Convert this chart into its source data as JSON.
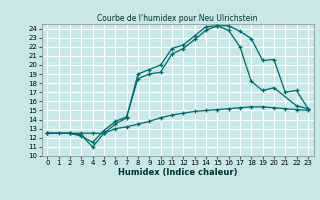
{
  "title": "Courbe de l'humidex pour Neu Ulrichstein",
  "xlabel": "Humidex (Indice chaleur)",
  "background_color": "#c8e8e8",
  "grid_color": "#ffffff",
  "line_color": "#006868",
  "xlim": [
    -0.5,
    23.5
  ],
  "ylim": [
    10,
    24.5
  ],
  "xticks": [
    0,
    1,
    2,
    3,
    4,
    5,
    6,
    7,
    8,
    9,
    10,
    11,
    12,
    13,
    14,
    15,
    16,
    17,
    18,
    19,
    20,
    21,
    22,
    23
  ],
  "yticks": [
    10,
    11,
    12,
    13,
    14,
    15,
    16,
    17,
    18,
    19,
    20,
    21,
    22,
    23,
    24
  ],
  "curve1_x": [
    0,
    1,
    2,
    3,
    4,
    5,
    6,
    7,
    8,
    9,
    10,
    11,
    12,
    13,
    14,
    15,
    16,
    17,
    18,
    19,
    20,
    21,
    22,
    23
  ],
  "curve1_y": [
    12.5,
    12.5,
    12.5,
    12.5,
    12.5,
    12.5,
    13.0,
    13.2,
    13.5,
    13.8,
    14.2,
    14.5,
    14.7,
    14.9,
    15.0,
    15.1,
    15.2,
    15.3,
    15.4,
    15.4,
    15.3,
    15.2,
    15.1,
    15.0
  ],
  "curve2_x": [
    0,
    2,
    3,
    4,
    5,
    6,
    7,
    8,
    9,
    10,
    11,
    12,
    13,
    14,
    15,
    16,
    17,
    18,
    19,
    20,
    21,
    22,
    23
  ],
  "curve2_y": [
    12.5,
    12.5,
    12.3,
    11.0,
    12.5,
    13.5,
    14.2,
    19.0,
    19.5,
    20.0,
    21.8,
    22.2,
    23.2,
    24.2,
    24.3,
    24.3,
    23.7,
    22.9,
    20.5,
    20.6,
    17.0,
    17.2,
    15.2
  ],
  "curve3_x": [
    0,
    2,
    3,
    4,
    5,
    6,
    7,
    8,
    9,
    10,
    11,
    12,
    13,
    14,
    15,
    16,
    17,
    18,
    19,
    20,
    22,
    23
  ],
  "curve3_y": [
    12.5,
    12.5,
    12.2,
    11.5,
    12.8,
    13.8,
    14.3,
    18.5,
    19.0,
    19.2,
    21.2,
    21.8,
    22.8,
    23.8,
    24.3,
    23.8,
    22.0,
    18.2,
    17.2,
    17.5,
    15.5,
    15.2
  ]
}
